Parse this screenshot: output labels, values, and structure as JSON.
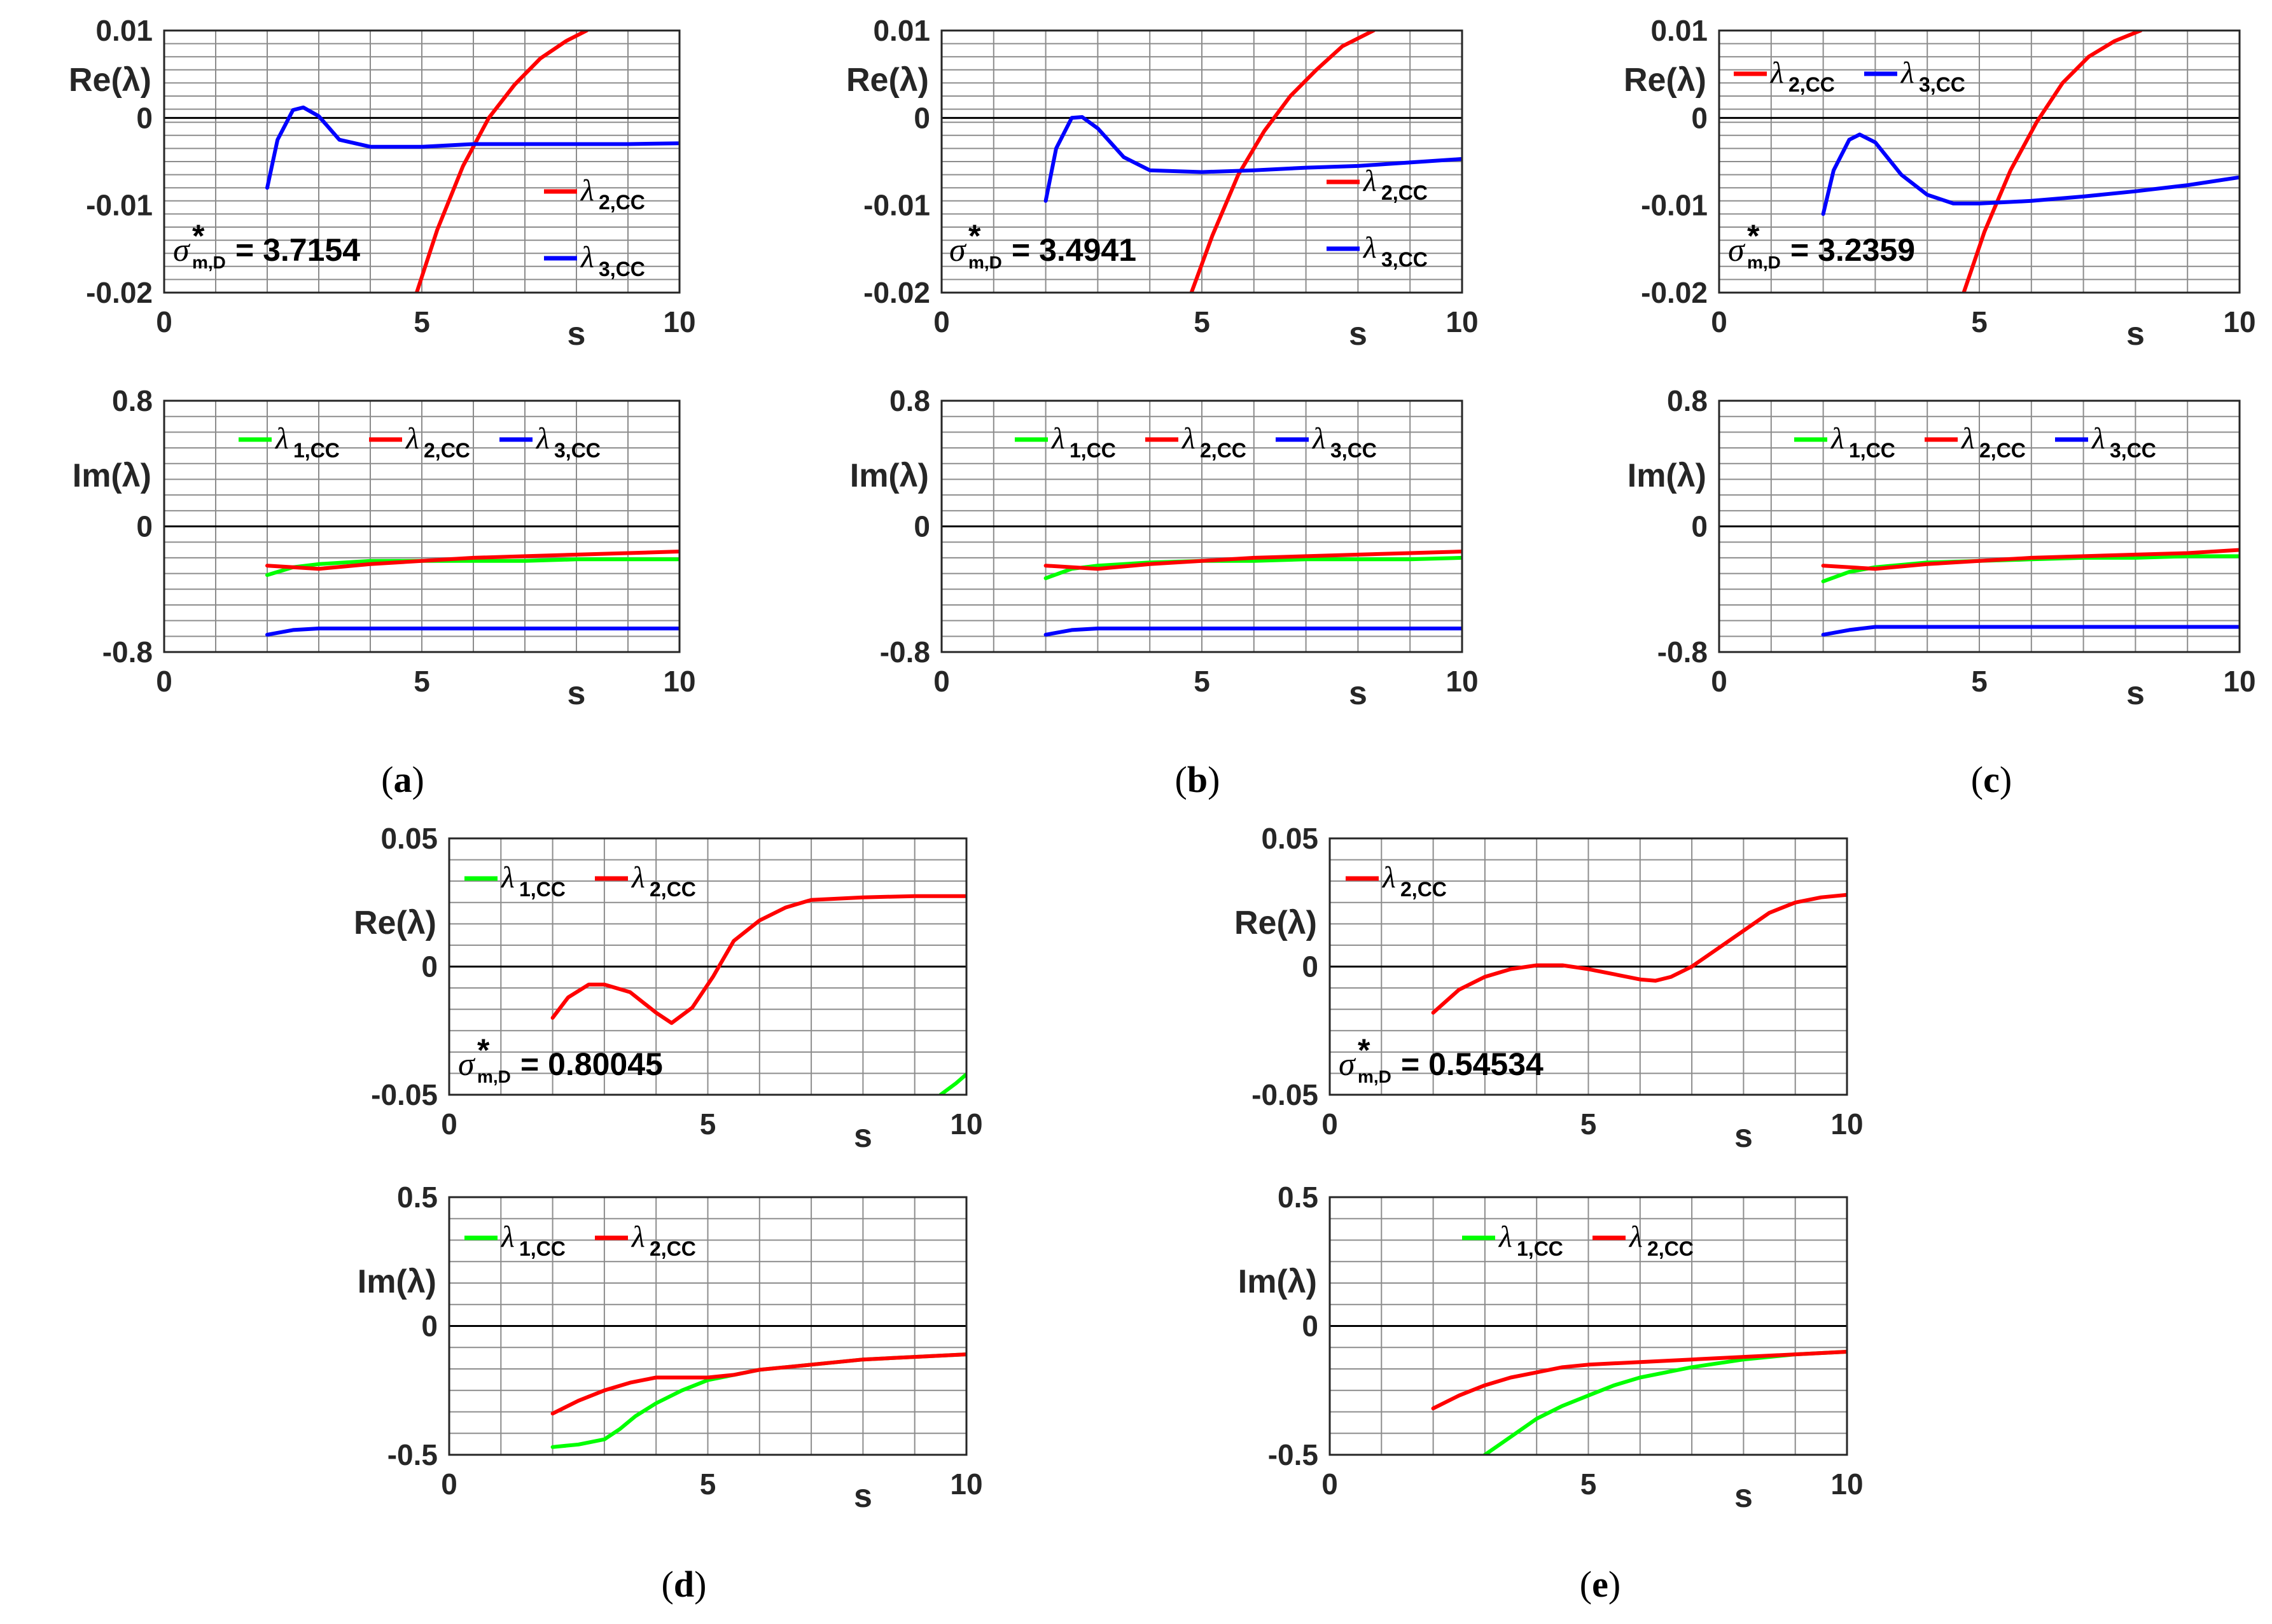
{
  "chart_data": [
    {
      "type": "line",
      "panel": "a",
      "subplot": "Re",
      "title": "",
      "xlabel": "s",
      "ylabel": "Re(λ)",
      "xlim": [
        0,
        10
      ],
      "ylim": [
        -0.02,
        0.01
      ],
      "xticks": [
        "0",
        "5",
        "10"
      ],
      "yticks": [
        "-0.02",
        "-0.01",
        "0",
        "0.01"
      ],
      "legend_location": "middle-right",
      "annotation": {
        "symbol": "σ",
        "superscript": "*",
        "subscript": "m,D",
        "text": "= 3.7154"
      },
      "series": [
        {
          "name": "λ",
          "subscript": "2,CC",
          "color": "#ff0000",
          "x": [
            4.9,
            5.3,
            5.8,
            6.3,
            6.8,
            7.3,
            7.8,
            8.2
          ],
          "y": [
            -0.02,
            -0.0128,
            -0.0055,
            0.0,
            0.0038,
            0.0068,
            0.0088,
            0.01
          ]
        },
        {
          "name": "λ",
          "subscript": "3,CC",
          "color": "#0000ff",
          "x": [
            2.0,
            2.2,
            2.5,
            2.7,
            3.0,
            3.4,
            4.0,
            5.0,
            6.0,
            7.0,
            8.0,
            9.0,
            10.0
          ],
          "y": [
            -0.008,
            -0.0025,
            0.0009,
            0.0012,
            0.0002,
            -0.0025,
            -0.0033,
            -0.0033,
            -0.003,
            -0.003,
            -0.003,
            -0.003,
            -0.0029
          ]
        }
      ]
    },
    {
      "type": "line",
      "panel": "a",
      "subplot": "Im",
      "xlabel": "s",
      "ylabel": "Im(λ)",
      "xlim": [
        0,
        10
      ],
      "ylim": [
        -0.8,
        0.8
      ],
      "xticks": [
        "0",
        "5",
        "10"
      ],
      "yticks": [
        "-0.8",
        "0",
        "0.8"
      ],
      "legend_location": "top",
      "series": [
        {
          "name": "λ",
          "subscript": "1,CC",
          "color": "#00ff00",
          "x": [
            2,
            2.5,
            3,
            4,
            5,
            6,
            7,
            8,
            9,
            10
          ],
          "y": [
            -0.31,
            -0.26,
            -0.24,
            -0.22,
            -0.22,
            -0.22,
            -0.22,
            -0.21,
            -0.21,
            -0.21
          ]
        },
        {
          "name": "λ",
          "subscript": "2,CC",
          "color": "#ff0000",
          "x": [
            2,
            3,
            4,
            5,
            6,
            7,
            8,
            9,
            10
          ],
          "y": [
            -0.25,
            -0.27,
            -0.24,
            -0.22,
            -0.2,
            -0.19,
            -0.18,
            -0.17,
            -0.16
          ]
        },
        {
          "name": "λ",
          "subscript": "3,CC",
          "color": "#0000ff",
          "x": [
            2,
            2.5,
            3,
            4,
            5,
            6,
            7,
            8,
            9,
            10
          ],
          "y": [
            -0.69,
            -0.66,
            -0.65,
            -0.65,
            -0.65,
            -0.65,
            -0.65,
            -0.65,
            -0.65,
            -0.65
          ]
        }
      ]
    },
    {
      "type": "line",
      "panel": "b",
      "subplot": "Re",
      "xlabel": "s",
      "ylabel": "Re(λ)",
      "xlim": [
        0,
        10
      ],
      "ylim": [
        -0.02,
        0.01
      ],
      "xticks": [
        "0",
        "5",
        "10"
      ],
      "yticks": [
        "-0.02",
        "-0.01",
        "0",
        "0.01"
      ],
      "legend_location": "middle-right",
      "annotation": {
        "symbol": "σ",
        "superscript": "*",
        "subscript": "m,D",
        "text": "= 3.4941"
      },
      "series": [
        {
          "name": "λ",
          "subscript": "2,CC",
          "color": "#ff0000",
          "x": [
            4.8,
            5.2,
            5.7,
            6.2,
            6.7,
            7.2,
            7.7,
            8.3
          ],
          "y": [
            -0.02,
            -0.0135,
            -0.0065,
            -0.0015,
            0.0025,
            0.0055,
            0.0082,
            0.01
          ]
        },
        {
          "name": "λ",
          "subscript": "3,CC",
          "color": "#0000ff",
          "x": [
            2.0,
            2.2,
            2.5,
            2.7,
            3.0,
            3.5,
            4.0,
            5.0,
            6.0,
            7.0,
            8.0,
            9.0,
            10.0
          ],
          "y": [
            -0.0095,
            -0.0035,
            0.0,
            0.0001,
            -0.0012,
            -0.0045,
            -0.006,
            -0.0062,
            -0.006,
            -0.0057,
            -0.0055,
            -0.0051,
            -0.0047
          ]
        }
      ]
    },
    {
      "type": "line",
      "panel": "b",
      "subplot": "Im",
      "xlabel": "s",
      "ylabel": "Im(λ)",
      "xlim": [
        0,
        10
      ],
      "ylim": [
        -0.8,
        0.8
      ],
      "xticks": [
        "0",
        "5",
        "10"
      ],
      "yticks": [
        "-0.8",
        "0",
        "0.8"
      ],
      "legend_location": "top",
      "series": [
        {
          "name": "λ",
          "subscript": "1,CC",
          "color": "#00ff00",
          "x": [
            2,
            2.5,
            3,
            4,
            5,
            6,
            7,
            8,
            9,
            10
          ],
          "y": [
            -0.33,
            -0.27,
            -0.25,
            -0.23,
            -0.22,
            -0.22,
            -0.21,
            -0.21,
            -0.21,
            -0.2
          ]
        },
        {
          "name": "λ",
          "subscript": "2,CC",
          "color": "#ff0000",
          "x": [
            2,
            3,
            4,
            5,
            6,
            7,
            8,
            9,
            10
          ],
          "y": [
            -0.25,
            -0.27,
            -0.24,
            -0.22,
            -0.2,
            -0.19,
            -0.18,
            -0.17,
            -0.16
          ]
        },
        {
          "name": "λ",
          "subscript": "3,CC",
          "color": "#0000ff",
          "x": [
            2,
            2.5,
            3,
            4,
            5,
            6,
            7,
            8,
            9,
            10
          ],
          "y": [
            -0.69,
            -0.66,
            -0.65,
            -0.65,
            -0.65,
            -0.65,
            -0.65,
            -0.65,
            -0.65,
            -0.65
          ]
        }
      ]
    },
    {
      "type": "line",
      "panel": "c",
      "subplot": "Re",
      "xlabel": "s",
      "ylabel": "Re(λ)",
      "xlim": [
        0,
        10
      ],
      "ylim": [
        -0.02,
        0.01
      ],
      "xticks": [
        "0",
        "5",
        "10"
      ],
      "yticks": [
        "-0.02",
        "-0.01",
        "0",
        "0.01"
      ],
      "legend_location": "top-left",
      "annotation": {
        "symbol": "σ",
        "superscript": "*",
        "subscript": "m,D",
        "text": "= 3.2359"
      },
      "series": [
        {
          "name": "λ",
          "subscript": "2,CC",
          "color": "#ff0000",
          "x": [
            4.7,
            5.1,
            5.6,
            6.1,
            6.6,
            7.1,
            7.6,
            8.1
          ],
          "y": [
            -0.02,
            -0.013,
            -0.006,
            -0.0005,
            0.004,
            0.007,
            0.0088,
            0.01
          ]
        },
        {
          "name": "λ",
          "subscript": "3,CC",
          "color": "#0000ff",
          "x": [
            2.0,
            2.2,
            2.5,
            2.7,
            3.0,
            3.5,
            4.0,
            4.5,
            5.0,
            6.0,
            7.0,
            8.0,
            9.0,
            10.0
          ],
          "y": [
            -0.011,
            -0.006,
            -0.0025,
            -0.0019,
            -0.0028,
            -0.0065,
            -0.0088,
            -0.0098,
            -0.0098,
            -0.0095,
            -0.009,
            -0.0084,
            -0.0077,
            -0.0068
          ]
        }
      ]
    },
    {
      "type": "line",
      "panel": "c",
      "subplot": "Im",
      "xlabel": "s",
      "ylabel": "Im(λ)",
      "xlim": [
        0,
        10
      ],
      "ylim": [
        -0.8,
        0.8
      ],
      "xticks": [
        "0",
        "5",
        "10"
      ],
      "yticks": [
        "-0.8",
        "0",
        "0.8"
      ],
      "legend_location": "top",
      "series": [
        {
          "name": "λ",
          "subscript": "1,CC",
          "color": "#00ff00",
          "x": [
            2,
            2.5,
            3,
            4,
            5,
            6,
            7,
            8,
            9,
            10
          ],
          "y": [
            -0.35,
            -0.29,
            -0.26,
            -0.23,
            -0.22,
            -0.21,
            -0.2,
            -0.2,
            -0.19,
            -0.19
          ]
        },
        {
          "name": "λ",
          "subscript": "2,CC",
          "color": "#ff0000",
          "x": [
            2,
            3,
            4,
            5,
            6,
            7,
            8,
            9,
            10
          ],
          "y": [
            -0.25,
            -0.27,
            -0.24,
            -0.22,
            -0.2,
            -0.19,
            -0.18,
            -0.17,
            -0.15
          ]
        },
        {
          "name": "λ",
          "subscript": "3,CC",
          "color": "#0000ff",
          "x": [
            2,
            2.5,
            3,
            4,
            5,
            6,
            7,
            8,
            9,
            10
          ],
          "y": [
            -0.69,
            -0.66,
            -0.64,
            -0.64,
            -0.64,
            -0.64,
            -0.64,
            -0.64,
            -0.64,
            -0.64
          ]
        }
      ]
    },
    {
      "type": "line",
      "panel": "d",
      "subplot": "Re",
      "xlabel": "s",
      "ylabel": "Re(λ)",
      "xlim": [
        0,
        10
      ],
      "ylim": [
        -0.05,
        0.05
      ],
      "xticks": [
        "0",
        "5",
        "10"
      ],
      "yticks": [
        "-0.05",
        "0",
        "0.05"
      ],
      "legend_location": "top-left",
      "annotation": {
        "symbol": "σ",
        "superscript": "*",
        "subscript": "m,D",
        "text": "= 0.80045"
      },
      "series": [
        {
          "name": "λ",
          "subscript": "1,CC",
          "color": "#00ff00",
          "x": [
            9.5,
            9.8,
            10.0
          ],
          "y": [
            -0.05,
            -0.0455,
            -0.042
          ]
        },
        {
          "name": "λ",
          "subscript": "2,CC",
          "color": "#ff0000",
          "x": [
            2.0,
            2.3,
            2.7,
            3.0,
            3.5,
            4.0,
            4.3,
            4.7,
            5.1,
            5.5,
            6.0,
            6.5,
            7.0,
            8.0,
            9.0,
            10.0
          ],
          "y": [
            -0.02,
            -0.012,
            -0.007,
            -0.007,
            -0.01,
            -0.018,
            -0.022,
            -0.016,
            -0.004,
            0.01,
            0.018,
            0.023,
            0.026,
            0.027,
            0.0275,
            0.0275
          ]
        }
      ]
    },
    {
      "type": "line",
      "panel": "d",
      "subplot": "Im",
      "xlabel": "s",
      "ylabel": "Im(λ)",
      "xlim": [
        0,
        10
      ],
      "ylim": [
        -0.5,
        0.5
      ],
      "xticks": [
        "0",
        "5",
        "10"
      ],
      "yticks": [
        "-0.5",
        "0",
        "0.5"
      ],
      "legend_location": "top",
      "series": [
        {
          "name": "λ",
          "subscript": "1,CC",
          "color": "#00ff00",
          "x": [
            2,
            2.5,
            3.0,
            3.3,
            3.6,
            4.0,
            4.5,
            5.0,
            5.5,
            6,
            7,
            8,
            9,
            10
          ],
          "y": [
            -0.47,
            -0.46,
            -0.44,
            -0.4,
            -0.35,
            -0.3,
            -0.25,
            -0.21,
            -0.19,
            -0.17,
            -0.15,
            -0.13,
            -0.12,
            -0.11
          ]
        },
        {
          "name": "λ",
          "subscript": "2,CC",
          "color": "#ff0000",
          "x": [
            2,
            2.5,
            3,
            3.5,
            4,
            4.5,
            5,
            5.5,
            6,
            7,
            8,
            9,
            10
          ],
          "y": [
            -0.34,
            -0.29,
            -0.25,
            -0.22,
            -0.2,
            -0.2,
            -0.2,
            -0.19,
            -0.17,
            -0.15,
            -0.13,
            -0.12,
            -0.11
          ]
        }
      ]
    },
    {
      "type": "line",
      "panel": "e",
      "subplot": "Re",
      "xlabel": "s",
      "ylabel": "Re(λ)",
      "xlim": [
        0,
        10
      ],
      "ylim": [
        -0.05,
        0.05
      ],
      "xticks": [
        "0",
        "5",
        "10"
      ],
      "yticks": [
        "-0.05",
        "0",
        "0.05"
      ],
      "legend_location": "top-left",
      "annotation": {
        "symbol": "σ",
        "superscript": "*",
        "subscript": "m,D",
        "text": "= 0.54534"
      },
      "series": [
        {
          "name": "λ",
          "subscript": "2,CC",
          "color": "#ff0000",
          "x": [
            2.0,
            2.5,
            3.0,
            3.5,
            4.0,
            4.5,
            5.0,
            5.5,
            6.0,
            6.3,
            6.6,
            7.0,
            7.5,
            8.0,
            8.5,
            9.0,
            9.5,
            10.0
          ],
          "y": [
            -0.018,
            -0.009,
            -0.004,
            -0.001,
            0.0005,
            0.0005,
            -0.001,
            -0.003,
            -0.005,
            -0.0055,
            -0.004,
            0.0,
            0.007,
            0.014,
            0.021,
            0.025,
            0.027,
            0.028
          ]
        }
      ]
    },
    {
      "type": "line",
      "panel": "e",
      "subplot": "Im",
      "xlabel": "s",
      "ylabel": "Im(λ)",
      "xlim": [
        0,
        10
      ],
      "ylim": [
        -0.5,
        0.5
      ],
      "xticks": [
        "0",
        "5",
        "10"
      ],
      "yticks": [
        "-0.5",
        "0",
        "0.5"
      ],
      "legend_location": "top",
      "series": [
        {
          "name": "λ",
          "subscript": "1,CC",
          "color": "#00ff00",
          "x": [
            3.0,
            3.5,
            4.0,
            4.5,
            5.0,
            5.5,
            6.0,
            7.0,
            8.0,
            9.0,
            10.0
          ],
          "y": [
            -0.5,
            -0.43,
            -0.36,
            -0.31,
            -0.27,
            -0.23,
            -0.2,
            -0.16,
            -0.13,
            -0.11,
            -0.1
          ]
        },
        {
          "name": "λ",
          "subscript": "2,CC",
          "color": "#ff0000",
          "x": [
            2,
            2.5,
            3,
            3.5,
            4,
            4.5,
            5,
            6,
            7,
            8,
            9,
            10
          ],
          "y": [
            -0.32,
            -0.27,
            -0.23,
            -0.2,
            -0.18,
            -0.16,
            -0.15,
            -0.14,
            -0.13,
            -0.12,
            -0.11,
            -0.1
          ]
        }
      ]
    }
  ],
  "panel_labels": [
    {
      "id": "a",
      "open": "(",
      "letter": "a",
      "close": ")"
    },
    {
      "id": "b",
      "open": "(",
      "letter": "b",
      "close": ")"
    },
    {
      "id": "c",
      "open": "(",
      "letter": "c",
      "close": ")"
    },
    {
      "id": "d",
      "open": "(",
      "letter": "d",
      "close": ")"
    },
    {
      "id": "e",
      "open": "(",
      "letter": "e",
      "close": ")"
    }
  ]
}
